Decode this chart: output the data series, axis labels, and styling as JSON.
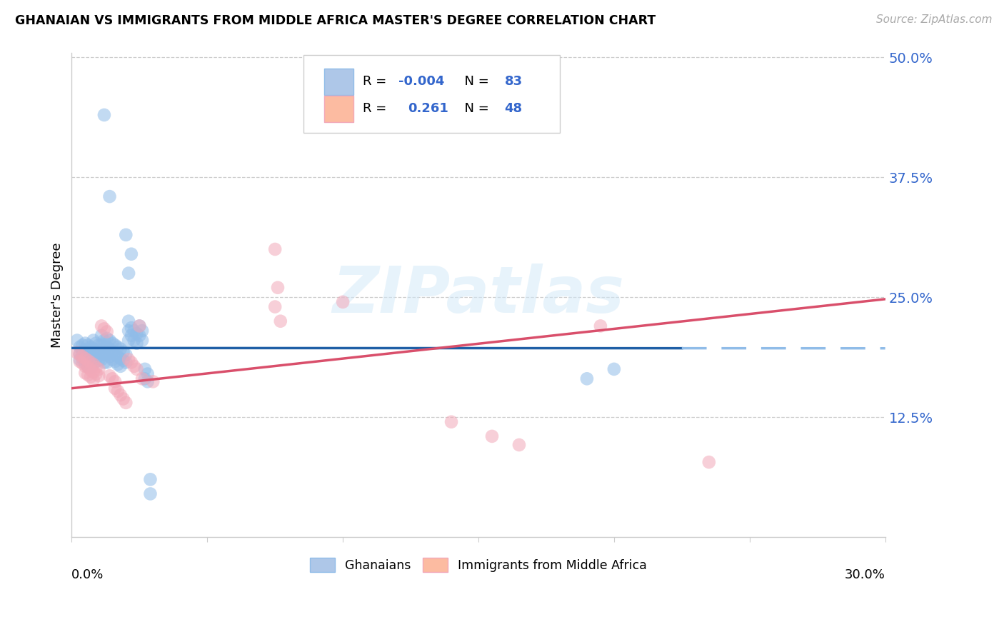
{
  "title": "GHANAIAN VS IMMIGRANTS FROM MIDDLE AFRICA MASTER'S DEGREE CORRELATION CHART",
  "source": "Source: ZipAtlas.com",
  "ylabel": "Master's Degree",
  "xlim": [
    0.0,
    0.3
  ],
  "ylim": [
    0.0,
    0.505
  ],
  "yticks": [
    0.125,
    0.25,
    0.375,
    0.5
  ],
  "ytick_labels": [
    "12.5%",
    "25.0%",
    "37.5%",
    "50.0%"
  ],
  "blue_color": "#90bce8",
  "pink_color": "#f2a8b8",
  "blue_line_solid_color": "#1f5fa6",
  "blue_line_dash_color": "#90bce8",
  "pink_line_color": "#d94f6b",
  "watermark": "ZIPatlas",
  "bg_color": "#ffffff",
  "grid_color": "#cccccc",
  "legend_text_color": "#3366cc",
  "blue_data": [
    [
      0.002,
      0.205
    ],
    [
      0.003,
      0.198
    ],
    [
      0.003,
      0.191
    ],
    [
      0.003,
      0.185
    ],
    [
      0.004,
      0.2
    ],
    [
      0.004,
      0.193
    ],
    [
      0.004,
      0.186
    ],
    [
      0.005,
      0.202
    ],
    [
      0.005,
      0.195
    ],
    [
      0.005,
      0.188
    ],
    [
      0.005,
      0.181
    ],
    [
      0.006,
      0.2
    ],
    [
      0.006,
      0.193
    ],
    [
      0.006,
      0.186
    ],
    [
      0.006,
      0.178
    ],
    [
      0.007,
      0.198
    ],
    [
      0.007,
      0.191
    ],
    [
      0.007,
      0.184
    ],
    [
      0.007,
      0.177
    ],
    [
      0.008,
      0.205
    ],
    [
      0.008,
      0.196
    ],
    [
      0.008,
      0.188
    ],
    [
      0.008,
      0.18
    ],
    [
      0.009,
      0.202
    ],
    [
      0.009,
      0.194
    ],
    [
      0.009,
      0.186
    ],
    [
      0.01,
      0.2
    ],
    [
      0.01,
      0.192
    ],
    [
      0.01,
      0.184
    ],
    [
      0.011,
      0.21
    ],
    [
      0.011,
      0.2
    ],
    [
      0.011,
      0.192
    ],
    [
      0.011,
      0.185
    ],
    [
      0.012,
      0.205
    ],
    [
      0.012,
      0.197
    ],
    [
      0.012,
      0.19
    ],
    [
      0.012,
      0.182
    ],
    [
      0.013,
      0.207
    ],
    [
      0.013,
      0.198
    ],
    [
      0.013,
      0.19
    ],
    [
      0.013,
      0.182
    ],
    [
      0.014,
      0.205
    ],
    [
      0.014,
      0.196
    ],
    [
      0.014,
      0.188
    ],
    [
      0.015,
      0.202
    ],
    [
      0.015,
      0.193
    ],
    [
      0.015,
      0.185
    ],
    [
      0.016,
      0.2
    ],
    [
      0.016,
      0.191
    ],
    [
      0.016,
      0.183
    ],
    [
      0.017,
      0.198
    ],
    [
      0.017,
      0.188
    ],
    [
      0.017,
      0.18
    ],
    [
      0.018,
      0.196
    ],
    [
      0.018,
      0.186
    ],
    [
      0.018,
      0.178
    ],
    [
      0.019,
      0.193
    ],
    [
      0.019,
      0.184
    ],
    [
      0.02,
      0.19
    ],
    [
      0.02,
      0.182
    ],
    [
      0.021,
      0.225
    ],
    [
      0.021,
      0.215
    ],
    [
      0.021,
      0.205
    ],
    [
      0.022,
      0.218
    ],
    [
      0.022,
      0.21
    ],
    [
      0.023,
      0.215
    ],
    [
      0.023,
      0.205
    ],
    [
      0.024,
      0.212
    ],
    [
      0.024,
      0.202
    ],
    [
      0.025,
      0.22
    ],
    [
      0.025,
      0.21
    ],
    [
      0.026,
      0.215
    ],
    [
      0.026,
      0.205
    ],
    [
      0.027,
      0.175
    ],
    [
      0.027,
      0.165
    ],
    [
      0.028,
      0.17
    ],
    [
      0.028,
      0.162
    ],
    [
      0.012,
      0.44
    ],
    [
      0.014,
      0.355
    ],
    [
      0.02,
      0.315
    ],
    [
      0.022,
      0.295
    ],
    [
      0.021,
      0.275
    ],
    [
      0.029,
      0.06
    ],
    [
      0.029,
      0.045
    ],
    [
      0.19,
      0.165
    ],
    [
      0.2,
      0.175
    ]
  ],
  "pink_data": [
    [
      0.002,
      0.192
    ],
    [
      0.003,
      0.19
    ],
    [
      0.003,
      0.183
    ],
    [
      0.004,
      0.188
    ],
    [
      0.004,
      0.181
    ],
    [
      0.005,
      0.186
    ],
    [
      0.005,
      0.178
    ],
    [
      0.005,
      0.171
    ],
    [
      0.006,
      0.184
    ],
    [
      0.006,
      0.177
    ],
    [
      0.006,
      0.169
    ],
    [
      0.007,
      0.182
    ],
    [
      0.007,
      0.174
    ],
    [
      0.007,
      0.167
    ],
    [
      0.008,
      0.18
    ],
    [
      0.008,
      0.172
    ],
    [
      0.008,
      0.164
    ],
    [
      0.009,
      0.177
    ],
    [
      0.009,
      0.17
    ],
    [
      0.01,
      0.175
    ],
    [
      0.01,
      0.168
    ],
    [
      0.011,
      0.22
    ],
    [
      0.012,
      0.217
    ],
    [
      0.013,
      0.214
    ],
    [
      0.014,
      0.168
    ],
    [
      0.015,
      0.165
    ],
    [
      0.016,
      0.162
    ],
    [
      0.016,
      0.155
    ],
    [
      0.017,
      0.152
    ],
    [
      0.018,
      0.148
    ],
    [
      0.019,
      0.144
    ],
    [
      0.02,
      0.14
    ],
    [
      0.021,
      0.185
    ],
    [
      0.022,
      0.182
    ],
    [
      0.023,
      0.178
    ],
    [
      0.024,
      0.175
    ],
    [
      0.025,
      0.22
    ],
    [
      0.026,
      0.165
    ],
    [
      0.03,
      0.162
    ],
    [
      0.075,
      0.3
    ],
    [
      0.076,
      0.26
    ],
    [
      0.077,
      0.225
    ],
    [
      0.1,
      0.245
    ],
    [
      0.075,
      0.24
    ],
    [
      0.14,
      0.12
    ],
    [
      0.155,
      0.105
    ],
    [
      0.165,
      0.096
    ],
    [
      0.195,
      0.22
    ],
    [
      0.235,
      0.078
    ]
  ]
}
